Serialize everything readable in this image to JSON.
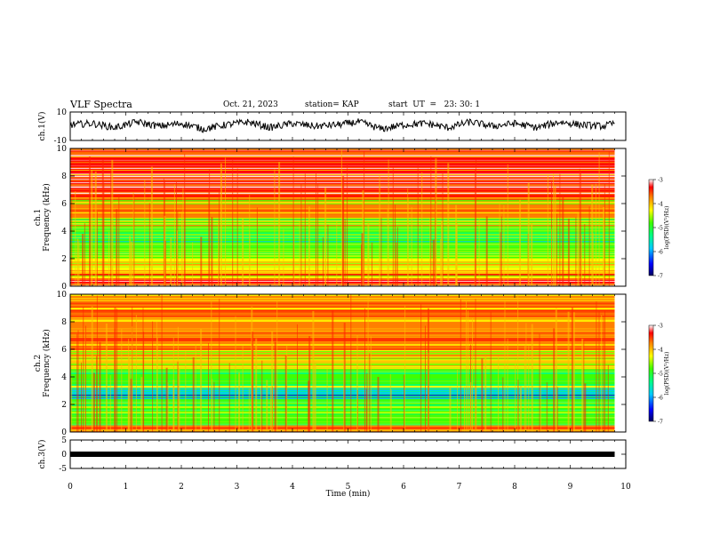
{
  "header": {
    "title": "VLF Spectra",
    "date": "Oct. 21, 2023",
    "station": "station= KAP",
    "start": "start  UT  =   23: 30: 1"
  },
  "chart_data": [
    {
      "type": "line",
      "panel": "ch1-waveform",
      "ylabel": "ch.1(V)",
      "ylim": [
        -10,
        10
      ],
      "yticks": [
        "10",
        "-10"
      ],
      "xlim": [
        0,
        10
      ],
      "description_of_values": "noisy voltage trace roughly between -3 and 5 V across 0-9.8 min",
      "x": [
        0.0,
        0.4,
        0.8,
        1.2,
        1.6,
        2.0,
        2.4,
        2.8,
        3.2,
        3.6,
        4.0,
        4.4,
        4.8,
        5.2,
        5.6,
        6.0,
        6.4,
        6.8,
        7.2,
        7.6,
        8.0,
        8.4,
        8.8,
        9.2,
        9.6,
        9.8
      ],
      "values": [
        1,
        2,
        -1,
        3,
        0,
        2,
        -2,
        1,
        3,
        -1,
        2,
        0,
        1,
        3,
        -2,
        1,
        2,
        -1,
        3,
        0,
        2,
        -1,
        3,
        1,
        0,
        2
      ]
    },
    {
      "type": "heatmap",
      "panel": "ch1-spectrogram",
      "ylabel": "ch.1\nFrequency (kHz)",
      "ylim": [
        0,
        10
      ],
      "yticks": [
        "0",
        "2",
        "4",
        "6",
        "8",
        "10"
      ],
      "xlim": [
        0,
        10
      ],
      "colorbar": {
        "label": "log(PSD)(V²/Hz)",
        "range": [
          -7,
          -3
        ],
        "ticks": [
          "-3",
          "-4",
          "-5",
          "-6",
          "-7"
        ]
      },
      "bands": [
        {
          "from": 0,
          "to": 0.5,
          "level": -3.6
        },
        {
          "from": 0.5,
          "to": 1.2,
          "level": -4.2
        },
        {
          "from": 1.2,
          "to": 2.0,
          "level": -4.6
        },
        {
          "from": 2.0,
          "to": 3.0,
          "level": -5.0
        },
        {
          "from": 3.0,
          "to": 4.2,
          "level": -5.2
        },
        {
          "from": 4.2,
          "to": 5.0,
          "level": -4.8
        },
        {
          "from": 5.0,
          "to": 6.5,
          "level": -4.2
        },
        {
          "from": 6.5,
          "to": 10.0,
          "level": -3.6
        }
      ]
    },
    {
      "type": "heatmap",
      "panel": "ch2-spectrogram",
      "ylabel": "ch.2\nFrequency (kHz)",
      "ylim": [
        0,
        10
      ],
      "yticks": [
        "0",
        "2",
        "4",
        "6",
        "8",
        "10"
      ],
      "xlim": [
        0,
        10
      ],
      "colorbar": {
        "label": "log(PSD)(V²/Hz)",
        "range": [
          -7,
          -3
        ],
        "ticks": [
          "-3",
          "-4",
          "-5",
          "-6",
          "-7"
        ]
      },
      "bands": [
        {
          "from": 0,
          "to": 0.5,
          "level": -3.8
        },
        {
          "from": 0.5,
          "to": 1.8,
          "level": -5.0
        },
        {
          "from": 1.8,
          "to": 2.4,
          "level": -5.0
        },
        {
          "from": 2.4,
          "to": 3.2,
          "level": -5.8
        },
        {
          "from": 3.2,
          "to": 4.5,
          "level": -5.0
        },
        {
          "from": 4.5,
          "to": 6.0,
          "level": -4.6
        },
        {
          "from": 6.0,
          "to": 10.0,
          "level": -4.0
        }
      ]
    },
    {
      "type": "line",
      "panel": "ch3-waveform",
      "ylabel": "ch.3(V)",
      "ylim": [
        -5,
        5
      ],
      "yticks": [
        "5",
        "0",
        "-5"
      ],
      "xlim": [
        0,
        10
      ],
      "x": [
        0.0,
        9.8
      ],
      "values": [
        0,
        0
      ]
    }
  ],
  "xaxis": {
    "label": "Time (min)",
    "ticks": [
      "0",
      "1",
      "2",
      "3",
      "4",
      "5",
      "6",
      "7",
      "8",
      "9",
      "10"
    ]
  },
  "colors": {
    "palette": [
      "#000080",
      "#0000ff",
      "#00c8ff",
      "#00ff80",
      "#40ff00",
      "#ffff00",
      "#ff8000",
      "#ff0000",
      "#ffffff"
    ]
  }
}
